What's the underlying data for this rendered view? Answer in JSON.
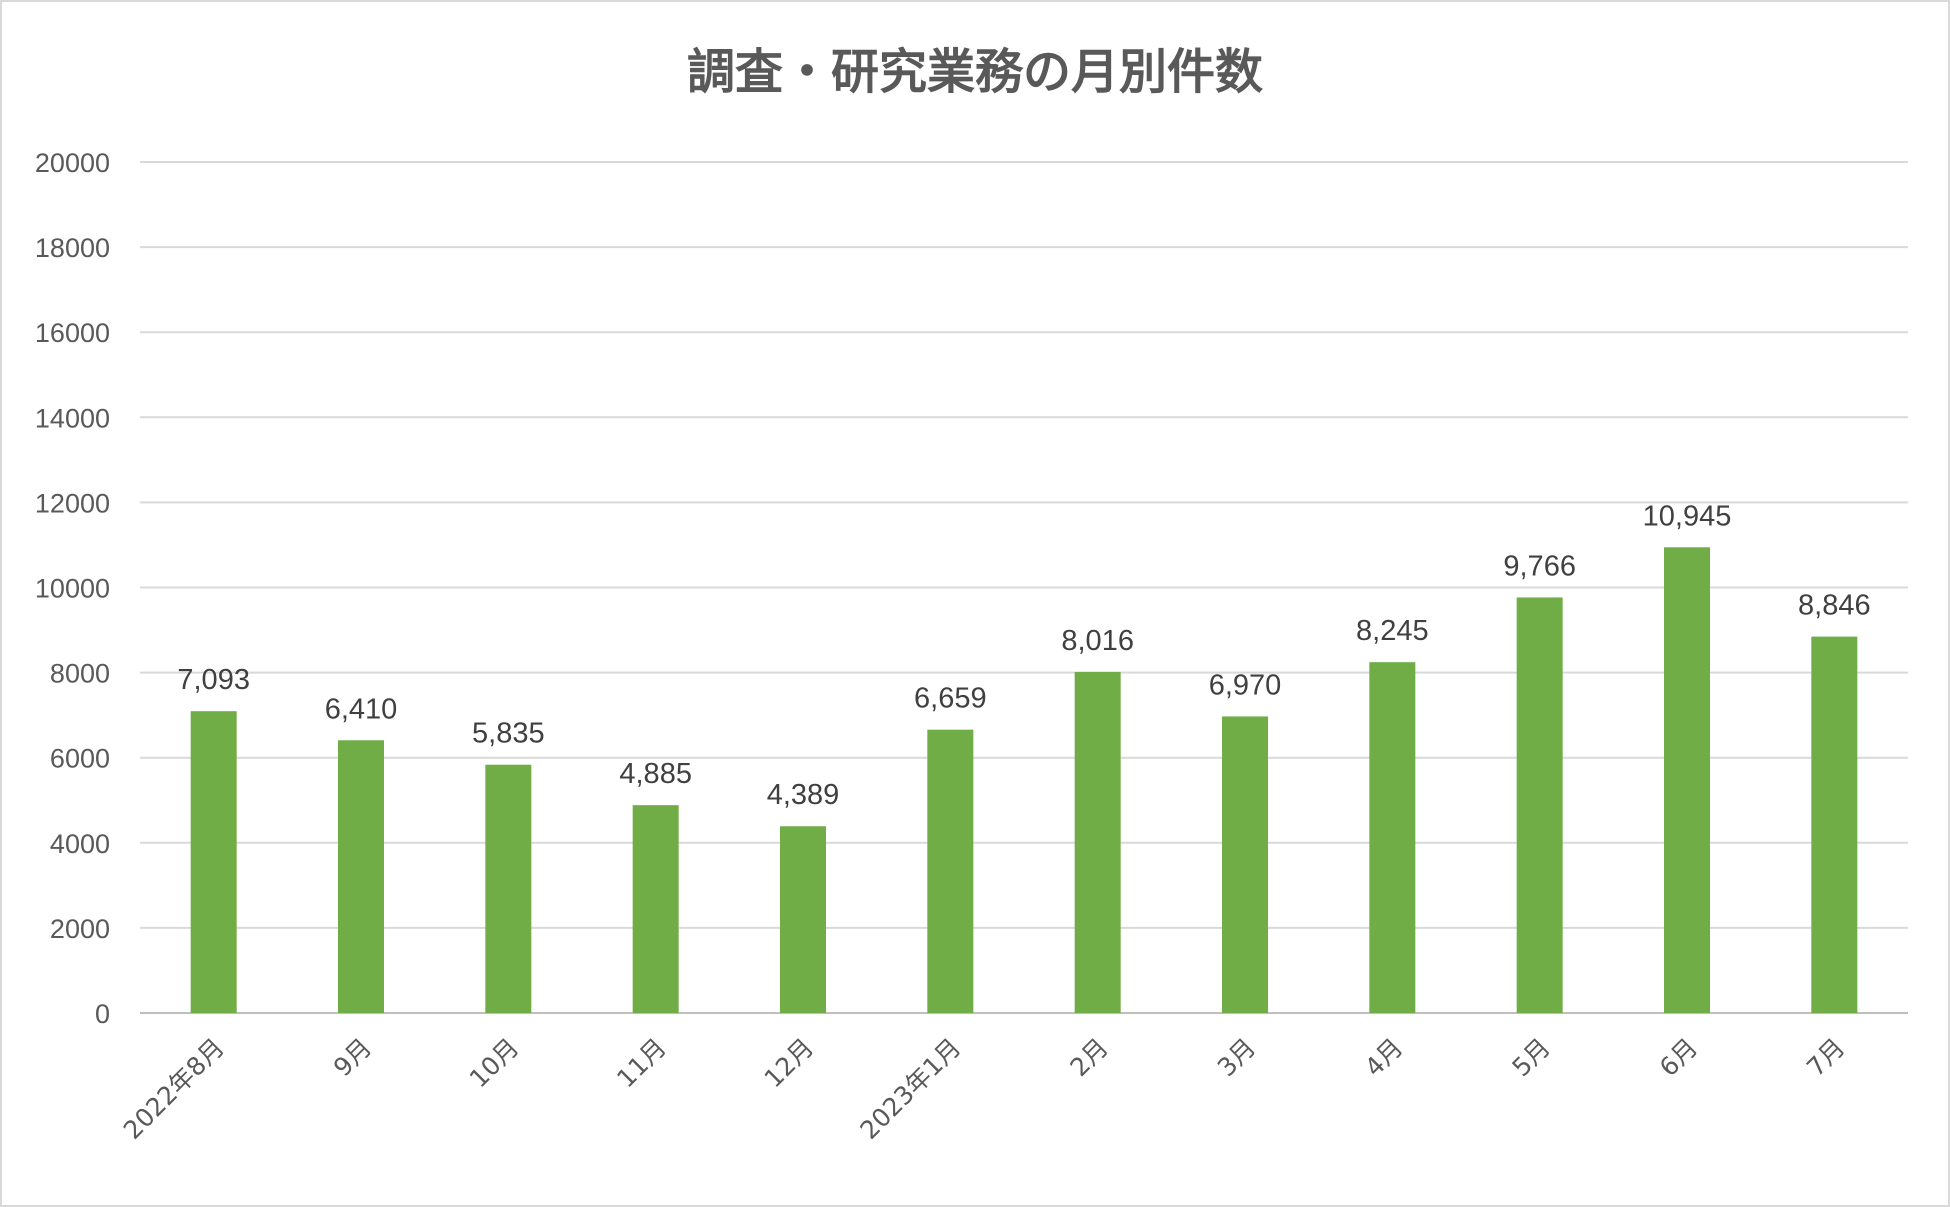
{
  "chart_data": {
    "type": "bar",
    "title": "調査・研究業務の月別件数",
    "xlabel": "",
    "ylabel": "",
    "categories": [
      "2022年8月",
      "9月",
      "10月",
      "11月",
      "12月",
      "2023年1月",
      "2月",
      "3月",
      "4月",
      "5月",
      "6月",
      "7月"
    ],
    "values": [
      7093,
      6410,
      5835,
      4885,
      4389,
      6659,
      8016,
      6970,
      8245,
      9766,
      10945,
      8846
    ],
    "data_labels": [
      "7,093",
      "6,410",
      "5,835",
      "4,885",
      "4,389",
      "6,659",
      "8,016",
      "6,970",
      "8,245",
      "9,766",
      "10,945",
      "8,846"
    ],
    "ylim": [
      0,
      20000
    ],
    "yticks": [
      "0",
      "2000",
      "4000",
      "6000",
      "8000",
      "10000",
      "12000",
      "14000",
      "16000",
      "18000",
      "20000"
    ],
    "grid": true,
    "legend": "none",
    "bar_color": "#70ad47"
  }
}
